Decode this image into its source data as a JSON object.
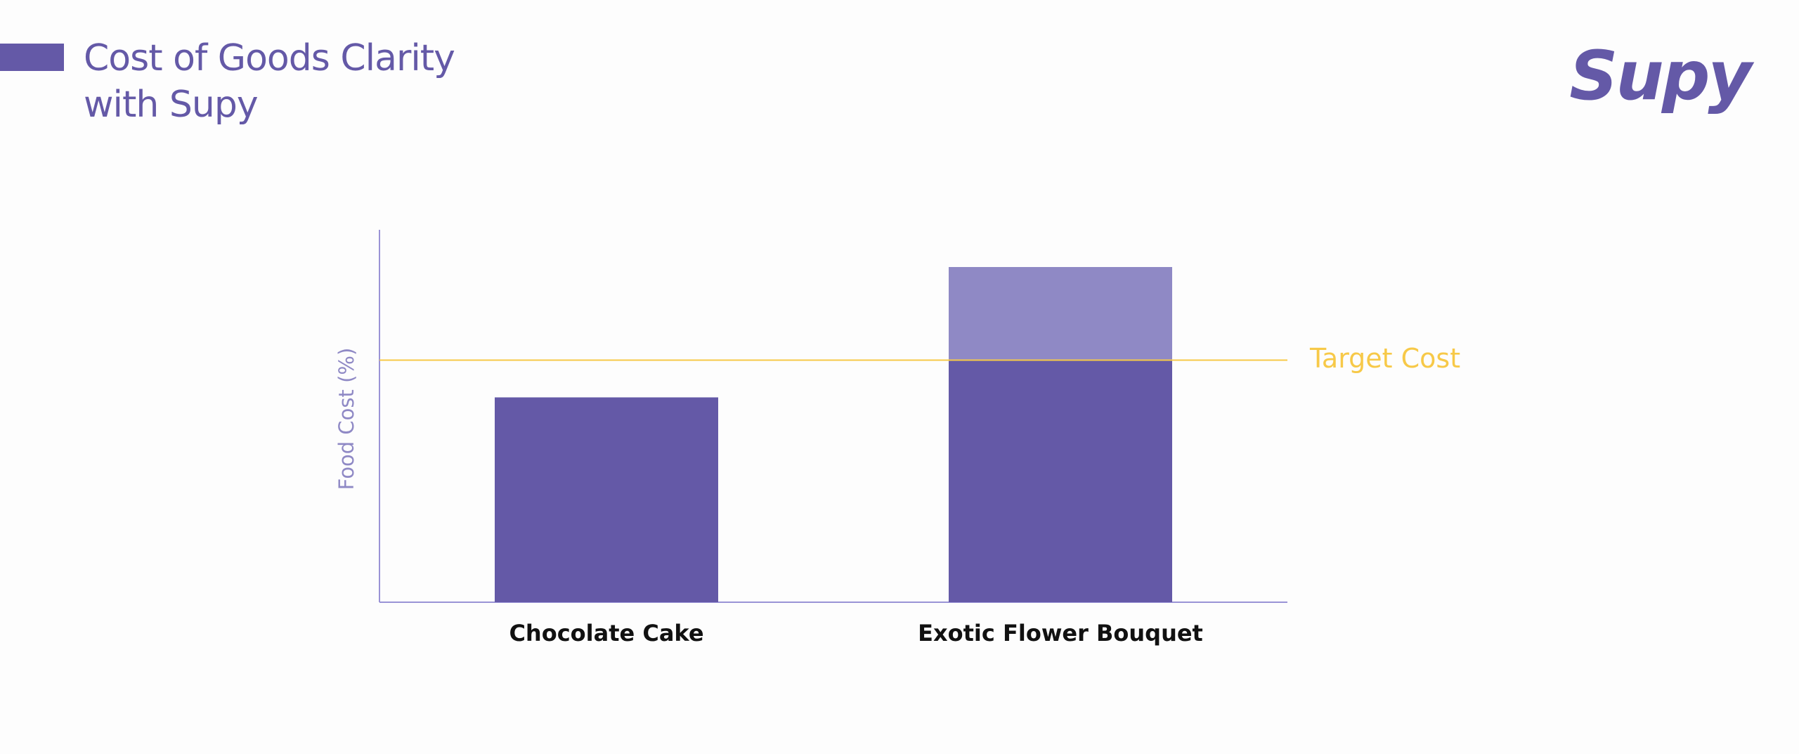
{
  "chart_data": {
    "type": "bar",
    "stacked": true,
    "title": "Cost of Goods Clarity with Supy",
    "logo": "Supy",
    "y_label": "Food Cost (%)",
    "categories": [
      "Chocolate Cake",
      "Exotic Flower Bouquet"
    ],
    "series": [
      {
        "color": "#6459a7",
        "values": [
          55,
          65
        ]
      },
      {
        "color": "#8f89c5",
        "values": [
          null,
          25
        ]
      }
    ],
    "target": {
      "value": 65,
      "label": "Target Cost",
      "color": "#f7c948"
    },
    "ylim": [
      0,
      100
    ]
  }
}
